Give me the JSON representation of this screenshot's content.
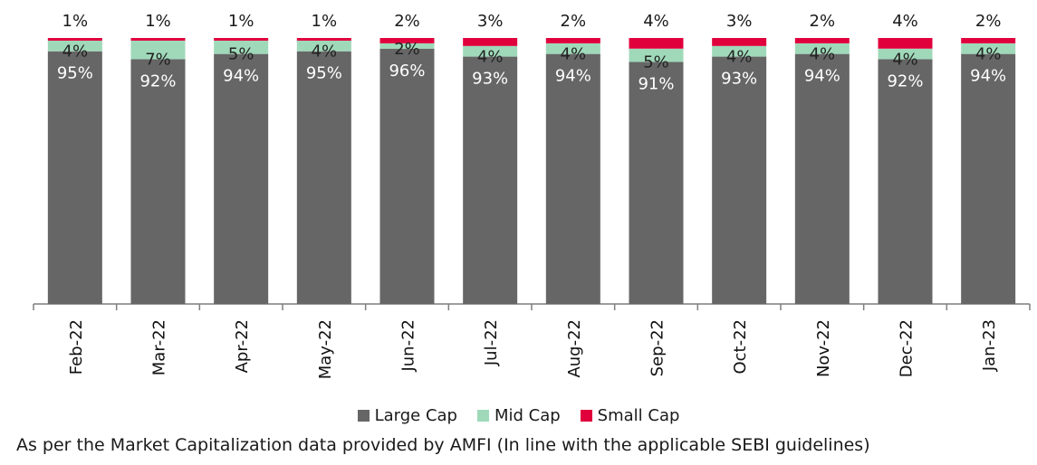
{
  "chart_data": {
    "type": "bar",
    "stacked": true,
    "categories": [
      "Feb-22",
      "Mar-22",
      "Apr-22",
      "May-22",
      "Jun-22",
      "Jul-22",
      "Aug-22",
      "Sep-22",
      "Oct-22",
      "Nov-22",
      "Dec-22",
      "Jan-23"
    ],
    "series": [
      {
        "name": "Large Cap",
        "color": "#666666",
        "values": [
          95,
          92,
          94,
          95,
          96,
          93,
          94,
          91,
          93,
          94,
          92,
          94
        ]
      },
      {
        "name": "Mid Cap",
        "color": "#9fd9b9",
        "values": [
          4,
          7,
          5,
          4,
          2,
          4,
          4,
          5,
          4,
          4,
          4,
          4
        ]
      },
      {
        "name": "Small Cap",
        "color": "#e0003c",
        "values": [
          1,
          1,
          1,
          1,
          2,
          3,
          2,
          4,
          3,
          2,
          4,
          2
        ]
      }
    ],
    "data_labels": {
      "Large Cap": [
        "95%",
        "92%",
        "94%",
        "95%",
        "96%",
        "93%",
        "94%",
        "91%",
        "93%",
        "94%",
        "92%",
        "94%"
      ],
      "Mid Cap": [
        "4%",
        "7%",
        "5%",
        "4%",
        "2%",
        "4%",
        "4%",
        "5%",
        "4%",
        "4%",
        "4%",
        "4%"
      ],
      "Small Cap": [
        "1%",
        "1%",
        "1%",
        "1%",
        "2%",
        "3%",
        "2%",
        "4%",
        "3%",
        "2%",
        "4%",
        "2%"
      ]
    },
    "ylim": [
      0,
      100
    ],
    "legend_position": "bottom",
    "grid": false
  },
  "footnote": "As per the Market Capitalization data provided by AMFI (In line with the applicable SEBI guidelines)"
}
